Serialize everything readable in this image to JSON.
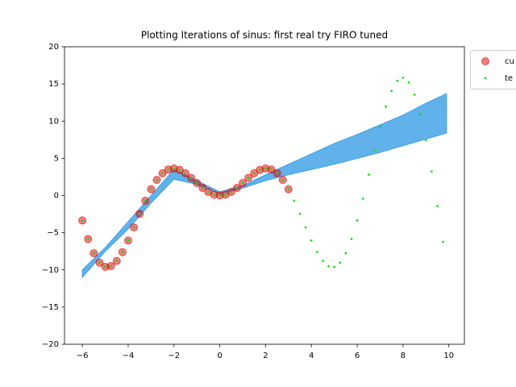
{
  "chart_data": {
    "type": "scatter",
    "title": "Plotting Iterations of sinus: first real try FIRO tuned",
    "xlim": [
      -6.78,
      10.68
    ],
    "ylim": [
      -20,
      20
    ],
    "xticks": [
      {
        "value": -6,
        "label": "−6"
      },
      {
        "value": -4,
        "label": "−4"
      },
      {
        "value": -2,
        "label": "−2"
      },
      0,
      2,
      4,
      6,
      8,
      10
    ],
    "yticks": [
      {
        "value": -20,
        "label": "−20"
      },
      {
        "value": -15,
        "label": "−15"
      },
      {
        "value": -10,
        "label": "−10"
      },
      {
        "value": -5,
        "label": "−5"
      },
      0,
      5,
      10,
      15,
      20
    ],
    "band": {
      "color": "#3a9fe6",
      "x": [
        -6,
        -5,
        -4,
        -3,
        -2,
        -1,
        0,
        1,
        2,
        3,
        4,
        5,
        6,
        7,
        8,
        9,
        9.9
      ],
      "lower": [
        -11,
        -7.5,
        -4.5,
        -1,
        2.2,
        1.5,
        0.2,
        1,
        2,
        2.8,
        3.5,
        4.2,
        5,
        5.8,
        6.7,
        7.6,
        8.4
      ],
      "upper": [
        -10,
        -7,
        -3.5,
        0,
        3.5,
        2,
        0.5,
        1.3,
        2.8,
        4.2,
        5.6,
        7,
        8.2,
        9.5,
        10.8,
        12.4,
        13.7
      ]
    },
    "series": [
      {
        "name": "cu",
        "color": "#e00000",
        "x": [
          -6,
          -5.75,
          -5.5,
          -5.25,
          -5,
          -4.75,
          -4.5,
          -4.25,
          -4,
          -3.75,
          -3.5,
          -3.25,
          -3,
          -2.75,
          -2.5,
          -2.25,
          -2,
          -1.75,
          -1.5,
          -1.25,
          -1,
          -0.75,
          -0.5,
          -0.25,
          0,
          0.25,
          0.5,
          0.75,
          1,
          1.25,
          1.5,
          1.75,
          2,
          2.25,
          2.5,
          2.75,
          3
        ],
        "values": [
          -3.35,
          -5.85,
          -7.76,
          -9.02,
          -9.59,
          -9.49,
          -8.8,
          -7.61,
          -6.05,
          -4.29,
          -2.46,
          -0.7,
          0.85,
          2.1,
          2.99,
          3.5,
          3.64,
          3.44,
          2.99,
          2.37,
          1.68,
          1.02,
          0.48,
          0.12,
          0,
          0.12,
          0.48,
          1.02,
          1.68,
          2.37,
          2.99,
          3.44,
          3.64,
          3.5,
          2.99,
          2.1,
          0.85
        ]
      },
      {
        "name": "te",
        "color": "#00e000",
        "x": [
          -6,
          -5.75,
          -5.5,
          -5.25,
          -5,
          -4.75,
          -4.5,
          -4.25,
          -4,
          -3.75,
          -3.5,
          -3.25,
          -3,
          -2.75,
          -2.5,
          -2.25,
          -2,
          -1.75,
          -1.5,
          -1.25,
          -1,
          -0.75,
          -0.5,
          -0.25,
          0,
          0.25,
          0.5,
          0.75,
          1,
          1.25,
          1.5,
          1.75,
          2,
          2.25,
          2.5,
          2.75,
          3,
          3.25,
          3.5,
          3.75,
          4,
          4.25,
          4.5,
          4.75,
          5,
          5.25,
          5.5,
          5.75,
          6,
          6.25,
          6.5,
          6.75,
          7,
          7.25,
          7.5,
          7.75,
          8,
          8.25,
          8.5,
          8.75,
          9,
          9.25,
          9.5,
          9.75
        ],
        "values": [
          -3.35,
          -5.85,
          -7.76,
          -9.02,
          -9.59,
          -9.49,
          -8.8,
          -7.61,
          -6.05,
          -4.29,
          -2.46,
          -0.7,
          0.85,
          2.1,
          2.99,
          3.5,
          3.64,
          3.44,
          2.99,
          2.37,
          1.68,
          1.02,
          0.48,
          0.12,
          0,
          0.12,
          0.48,
          1.02,
          1.68,
          2.37,
          2.99,
          3.44,
          3.64,
          3.5,
          2.99,
          2.1,
          0.85,
          -0.7,
          -2.46,
          -4.29,
          -6.05,
          -7.61,
          -8.8,
          -9.49,
          -9.59,
          -9.02,
          -7.76,
          -5.85,
          -3.35,
          -0.42,
          2.8,
          6.08,
          9.2,
          11.95,
          14.07,
          15.42,
          15.83,
          15.23,
          13.58,
          10.93,
          7.42,
          3.23,
          -1.43,
          -6.23
        ]
      }
    ]
  }
}
